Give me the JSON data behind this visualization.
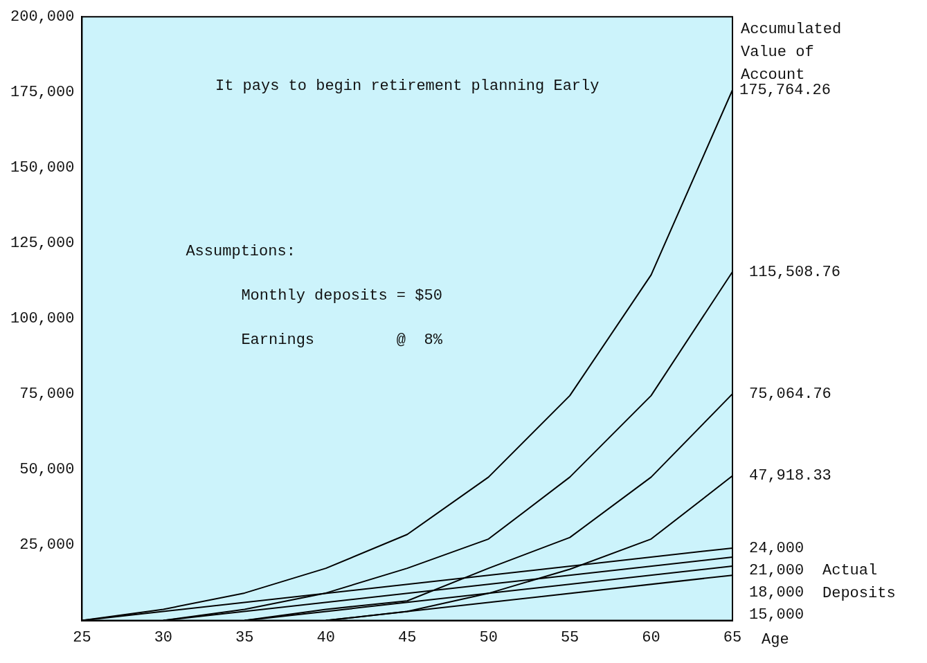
{
  "chart_data": {
    "type": "line",
    "title": "It pays to begin retirement planning Early",
    "xlabel": "Age",
    "annotations": [
      "Accumulated Value of Account",
      "Actual Deposits",
      "Assumptions:",
      "Monthly deposits = $50",
      "Earnings         @  8%"
    ],
    "xlim": [
      25,
      65
    ],
    "xticks": [
      25,
      30,
      35,
      40,
      45,
      50,
      55,
      60,
      65
    ],
    "ylim": [
      0,
      200000
    ],
    "yticks": [
      {
        "value": 0,
        "label": null
      },
      {
        "value": 25000,
        "label": "25,000"
      },
      {
        "value": 50000,
        "label": "50,000"
      },
      {
        "value": 75000,
        "label": "75,000"
      },
      {
        "value": 100000,
        "label": "100,000"
      },
      {
        "value": 125000,
        "label": "125,000"
      },
      {
        "value": 150000,
        "label": "150,000"
      },
      {
        "value": 175000,
        "label": "175,000"
      },
      {
        "value": 200000,
        "label": "200,000"
      }
    ],
    "grid": false,
    "legend": false,
    "marker": "none",
    "line_style": "solid",
    "series": [
      {
        "color": "#000000",
        "x": [
          25,
          30,
          35,
          40,
          45,
          50,
          55,
          60,
          65
        ],
        "values": [
          0,
          3700,
          9100,
          17300,
          28500,
          47500,
          74500,
          114500,
          175764.26
        ],
        "value_labels": [
          null,
          null,
          null,
          null,
          null,
          null,
          null,
          null,
          "175,764.26"
        ]
      },
      {
        "color": "#000000",
        "x": [
          30,
          35,
          40,
          45,
          50,
          55,
          60,
          65
        ],
        "values": [
          0,
          3700,
          9100,
          17300,
          27000,
          47500,
          74500,
          115508.76
        ],
        "value_labels": [
          null,
          null,
          null,
          null,
          null,
          null,
          null,
          "115,508.76"
        ]
      },
      {
        "color": "#000000",
        "x": [
          35,
          40,
          45,
          50,
          55,
          60,
          65
        ],
        "values": [
          0,
          3700,
          6500,
          17300,
          27500,
          47500,
          75064.76
        ],
        "value_labels": [
          null,
          null,
          null,
          null,
          null,
          null,
          "75,064.76"
        ]
      },
      {
        "color": "#000000",
        "x": [
          40,
          45,
          50,
          55,
          60,
          65
        ],
        "values": [
          0,
          3000,
          9000,
          17000,
          27000,
          47918.33
        ],
        "value_labels": [
          null,
          null,
          null,
          null,
          null,
          "47,918.33"
        ]
      },
      {
        "color": "#000000",
        "x": [
          25,
          65
        ],
        "values": [
          0,
          24000
        ],
        "value_labels": [
          null,
          "24,000"
        ]
      },
      {
        "color": "#000000",
        "x": [
          30,
          65
        ],
        "values": [
          0,
          21000
        ],
        "value_labels": [
          null,
          "21,000"
        ]
      },
      {
        "color": "#000000",
        "x": [
          35,
          65
        ],
        "values": [
          0,
          18000
        ],
        "value_labels": [
          null,
          "18,000"
        ]
      },
      {
        "color": "#000000",
        "x": [
          40,
          65
        ],
        "values": [
          0,
          15000
        ],
        "value_labels": [
          null,
          "15,000"
        ]
      }
    ]
  }
}
